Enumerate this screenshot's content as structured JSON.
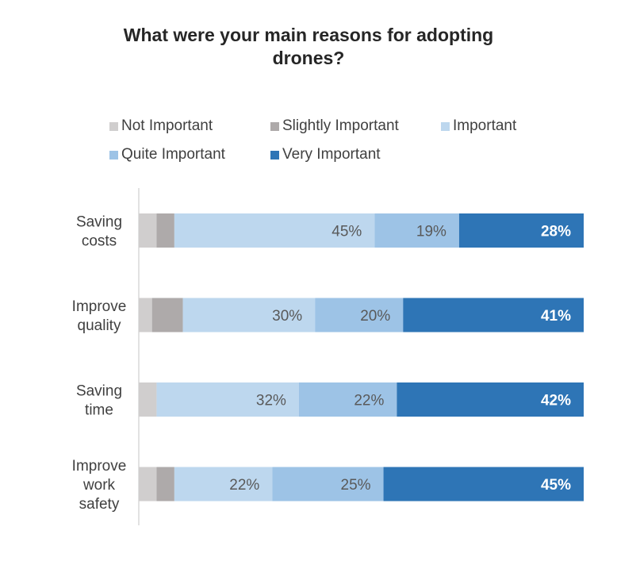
{
  "chart_data": {
    "type": "bar",
    "orientation": "horizontal",
    "stacked": true,
    "title_lines": [
      "What were your main reasons for adopting",
      "drones?"
    ],
    "categories": [
      [
        "Saving",
        "costs"
      ],
      [
        "Improve",
        "quality"
      ],
      [
        "Saving",
        "time"
      ],
      [
        "Improve",
        "work",
        "safety"
      ]
    ],
    "series": [
      {
        "name": "Not Important",
        "color": "#d0cece",
        "values": [
          4,
          3,
          4,
          4
        ],
        "labels": [
          "",
          "",
          "",
          ""
        ],
        "label_color": "#404040"
      },
      {
        "name": "Slightly Important",
        "color": "#aeaaaa",
        "values": [
          4,
          7,
          0,
          4
        ],
        "labels": [
          "",
          "",
          "",
          ""
        ],
        "label_color": "#404040"
      },
      {
        "name": "Important",
        "color": "#bdd7ee",
        "values": [
          45,
          30,
          32,
          22
        ],
        "labels": [
          "45%",
          "30%",
          "32%",
          "22%"
        ],
        "label_color": "#595959"
      },
      {
        "name": "Quite Important",
        "color": "#9dc3e6",
        "values": [
          19,
          20,
          22,
          25
        ],
        "labels": [
          "19%",
          "20%",
          "22%",
          "25%"
        ],
        "label_color": "#595959"
      },
      {
        "name": "Very Important",
        "color": "#2e75b6",
        "values": [
          28,
          41,
          42,
          45
        ],
        "labels": [
          "28%",
          "41%",
          "42%",
          "45%"
        ],
        "label_color": "#ffffff"
      }
    ],
    "xlim": [
      0,
      100
    ],
    "grid": false,
    "legend_position": "top"
  }
}
